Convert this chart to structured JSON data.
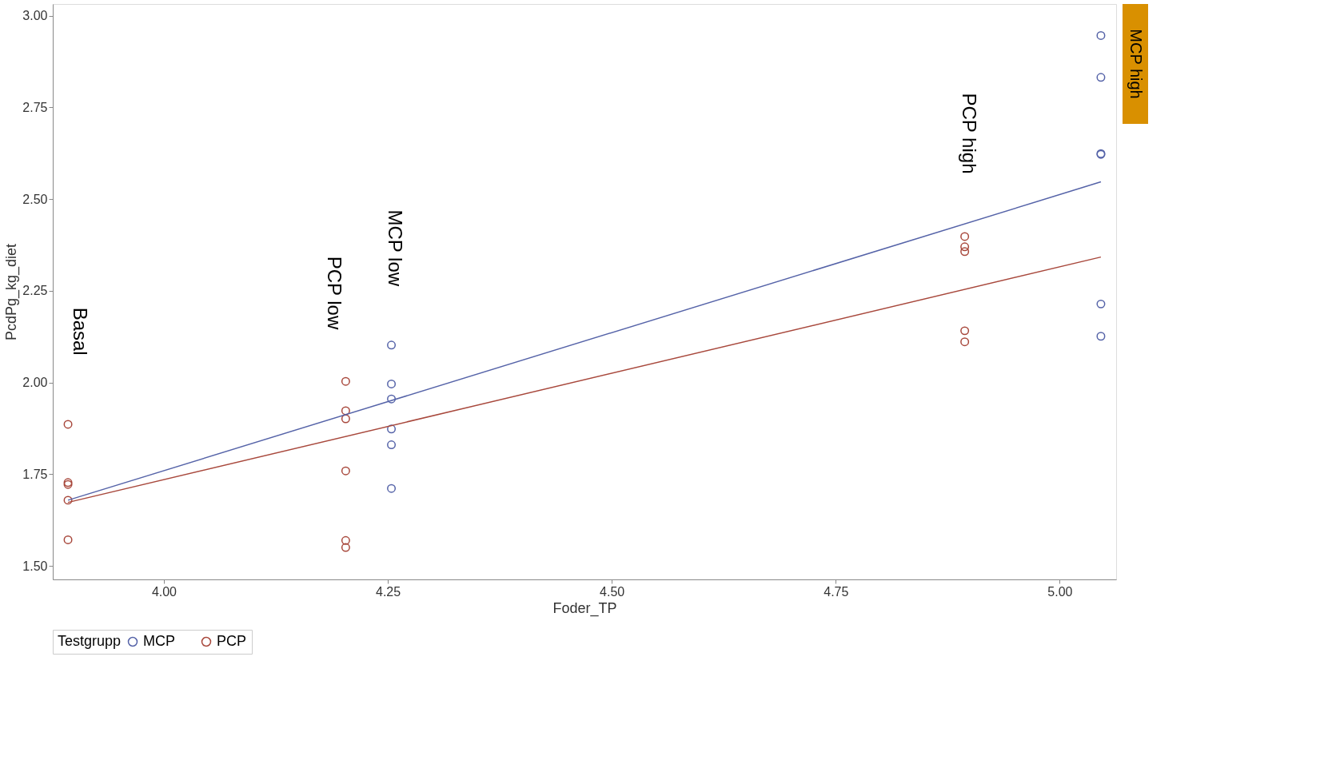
{
  "chart_data": {
    "type": "scatter",
    "xlabel": "Foder_TP",
    "ylabel": "PcdPg_kg_diet",
    "legend_title": "Testgrupp",
    "legend": "bottom",
    "marker": "circle",
    "grid": false,
    "xlim": [
      3.876,
      5.063
    ],
    "ylim": [
      1.463,
      3.032
    ],
    "xticks": [
      {
        "value": 4,
        "label": "4.00"
      },
      {
        "value": 4.25,
        "label": "4.25"
      },
      {
        "value": 4.5,
        "label": "4.50"
      },
      {
        "value": 4.75,
        "label": "4.75"
      },
      {
        "value": 5,
        "label": "5.00"
      }
    ],
    "yticks": [
      {
        "value": 1.5,
        "label": "1.50"
      },
      {
        "value": 1.75,
        "label": "1.75"
      },
      {
        "value": 2,
        "label": "2.00"
      },
      {
        "value": 2.25,
        "label": "2.25"
      },
      {
        "value": 2.5,
        "label": "2.50"
      },
      {
        "value": 2.75,
        "label": "2.75"
      },
      {
        "value": 3,
        "label": "3.00"
      }
    ],
    "series": [
      {
        "name": "MCP",
        "color": "#5563a8",
        "x": [
          4.254,
          4.254,
          4.254,
          4.254,
          4.254,
          4.254,
          5.046,
          5.046,
          5.046,
          5.046,
          5.046,
          5.046
        ],
        "values": [
          2.102,
          1.996,
          1.955,
          1.873,
          1.83,
          1.711,
          2.946,
          2.832,
          2.624,
          2.622,
          2.214,
          2.126
        ]
      },
      {
        "name": "PCP",
        "color": "#a8483c",
        "x": [
          3.893,
          3.893,
          3.893,
          3.893,
          3.893,
          4.203,
          4.203,
          4.203,
          4.203,
          4.203,
          4.203,
          4.894,
          4.894,
          4.894,
          4.894,
          4.894
        ],
        "values": [
          1.886,
          1.727,
          1.722,
          1.679,
          1.571,
          2.003,
          1.923,
          1.901,
          1.759,
          1.569,
          1.55,
          2.398,
          2.37,
          2.357,
          2.141,
          2.111
        ]
      },
      {
        "type": "line",
        "color": "#5563a8",
        "marker": "none",
        "line_style": "solid",
        "x": [
          3.893,
          5.046
        ],
        "values": [
          1.679,
          2.547
        ]
      },
      {
        "type": "line",
        "color": "#a8483c",
        "marker": "none",
        "line_style": "solid",
        "x": [
          3.893,
          5.046
        ],
        "values": [
          1.673,
          2.342
        ]
      }
    ],
    "annotations": [
      "Basal",
      "PCP low",
      "MCP low",
      "PCP high",
      "MCP high"
    ]
  }
}
